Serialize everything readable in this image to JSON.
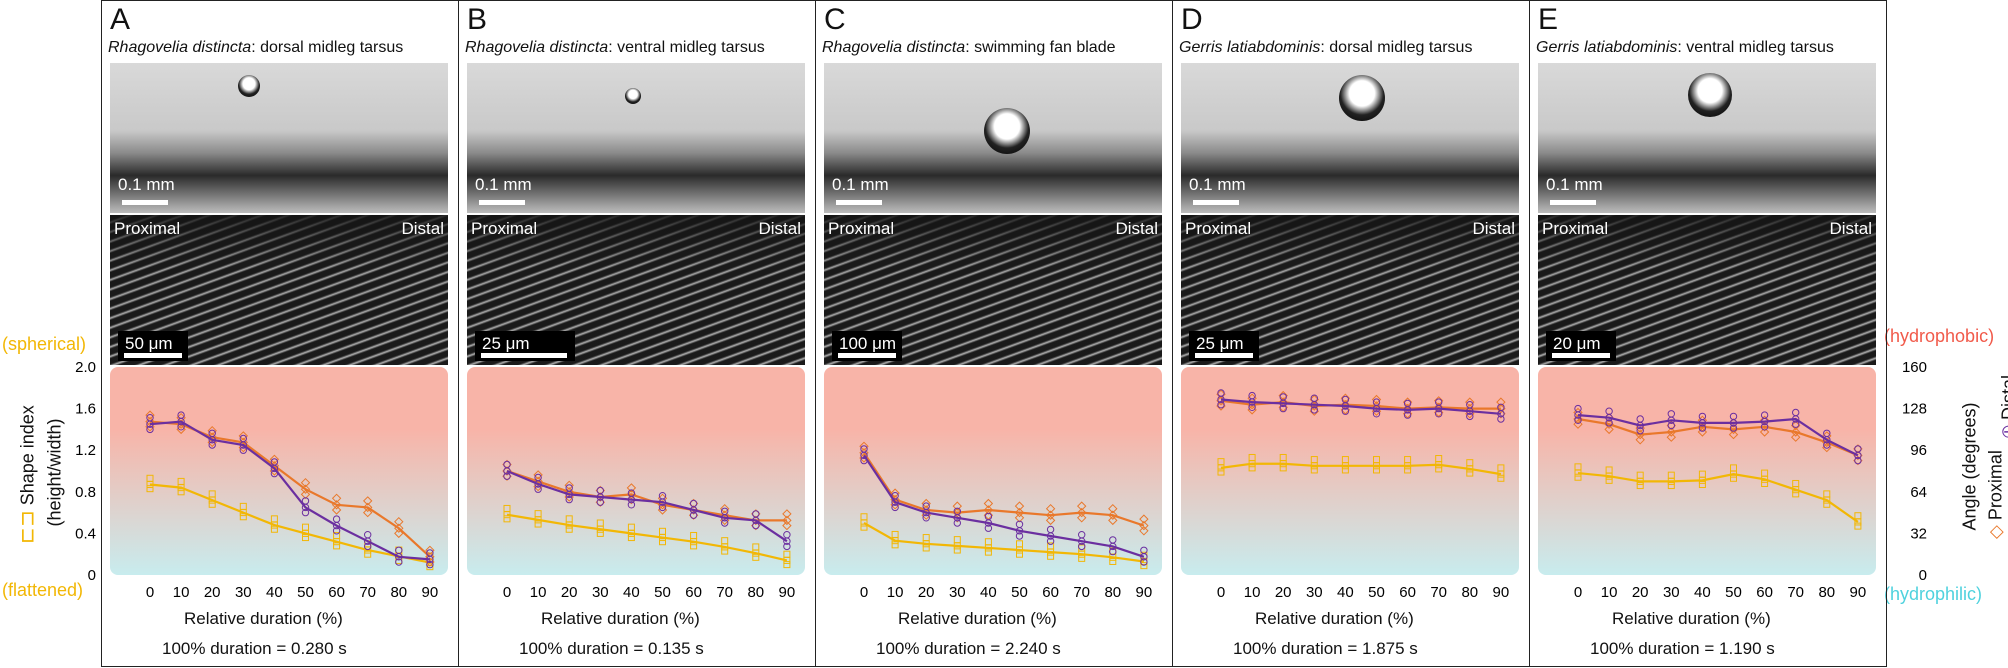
{
  "colors": {
    "shape_index": "#f2b705",
    "proximal": "#e9782b",
    "distal": "#6b2fa0",
    "hydrophobic_top": "#f8b4a8",
    "hydrophilic_bottom": "#c8ecee",
    "hydrophobic_text": "#f15a4a",
    "hydrophilic_text": "#4fd2de",
    "spherical_text": "#f2b705"
  },
  "left_axis": {
    "title": "Shape index",
    "subtitle": "(height/width)",
    "top_label": "(spherical)",
    "bottom_label": "(flattened)",
    "ticks": [
      "2.0",
      "1.6",
      "1.2",
      "0.8",
      "0.4",
      "0"
    ]
  },
  "right_axis": {
    "title": "Angle (degrees)",
    "top_label": "(hydrophobic)",
    "bottom_label": "(hydrophilic)",
    "ticks": [
      "160",
      "128",
      "96",
      "64",
      "32",
      "0"
    ],
    "legend_proximal": "Proximal",
    "legend_distal": "Distal"
  },
  "panels": [
    {
      "letter": "A",
      "species": "Rhagovelia distincta",
      "part": ": dorsal midleg tarsus",
      "photo_scale": "0.1 mm",
      "sem_scale": "50 μm",
      "sem_left": "Proximal",
      "sem_right": "Distal",
      "xlabel": "Relative duration (%)",
      "duration": "100% duration = 0.280 s"
    },
    {
      "letter": "B",
      "species": "Rhagovelia distincta",
      "part": ": ventral midleg tarsus",
      "photo_scale": "0.1 mm",
      "sem_scale": "25 μm",
      "sem_left": "Proximal",
      "sem_right": "Distal",
      "xlabel": "Relative duration (%)",
      "duration": "100% duration = 0.135 s"
    },
    {
      "letter": "C",
      "species": "Rhagovelia distincta",
      "part": ": swimming fan blade",
      "photo_scale": "0.1 mm",
      "sem_scale": "100 μm",
      "sem_left": "Proximal",
      "sem_right": "Distal",
      "xlabel": "Relative duration (%)",
      "duration": "100% duration = 2.240 s"
    },
    {
      "letter": "D",
      "species": "Gerris latiabdominis",
      "part": ": dorsal midleg tarsus",
      "photo_scale": "0.1 mm",
      "sem_scale": "25 μm",
      "sem_left": "Proximal",
      "sem_right": "Distal",
      "xlabel": "Relative duration (%)",
      "duration": "100% duration = 1.875 s"
    },
    {
      "letter": "E",
      "species": "Gerris latiabdominis",
      "part": ": ventral midleg tarsus",
      "photo_scale": "0.1 mm",
      "sem_scale": "20 μm",
      "sem_left": "Proximal",
      "sem_right": "Distal",
      "xlabel": "Relative duration (%)",
      "duration": "100% duration = 1.190 s"
    }
  ],
  "chart_data": [
    {
      "type": "line",
      "panel": "A",
      "x": [
        0,
        10,
        20,
        30,
        40,
        50,
        60,
        70,
        80,
        90
      ],
      "xlabel": "Relative duration (%)",
      "ylabel_left": "Shape index (height/width)",
      "ylim_left": [
        0,
        2.0
      ],
      "ylabel_right": "Angle (degrees)",
      "ylim_right": [
        0,
        160
      ],
      "series": [
        {
          "name": "Shape index",
          "axis": "left",
          "values": [
            0.87,
            0.84,
            0.72,
            0.6,
            0.48,
            0.4,
            0.32,
            0.24,
            0.18,
            0.12
          ]
        },
        {
          "name": "Proximal",
          "axis": "right",
          "values": [
            118,
            116,
            106,
            102,
            84,
            66,
            54,
            52,
            36,
            14
          ]
        },
        {
          "name": "Distal",
          "axis": "right",
          "values": [
            116,
            118,
            104,
            100,
            82,
            52,
            38,
            26,
            14,
            12
          ]
        }
      ]
    },
    {
      "type": "line",
      "panel": "B",
      "x": [
        0,
        10,
        20,
        30,
        40,
        50,
        60,
        70,
        80,
        90
      ],
      "xlabel": "Relative duration (%)",
      "ylim_left": [
        0,
        2.0
      ],
      "ylim_right": [
        0,
        160
      ],
      "series": [
        {
          "name": "Shape index",
          "axis": "left",
          "values": [
            0.58,
            0.53,
            0.48,
            0.44,
            0.4,
            0.36,
            0.32,
            0.27,
            0.21,
            0.14
          ]
        },
        {
          "name": "Proximal",
          "axis": "right",
          "values": [
            80,
            72,
            64,
            60,
            62,
            54,
            50,
            46,
            42,
            42
          ]
        },
        {
          "name": "Distal",
          "axis": "right",
          "values": [
            80,
            70,
            62,
            60,
            58,
            56,
            50,
            44,
            42,
            26
          ]
        }
      ]
    },
    {
      "type": "line",
      "panel": "C",
      "x": [
        0,
        10,
        20,
        30,
        40,
        50,
        60,
        70,
        80,
        90
      ],
      "xlabel": "Relative duration (%)",
      "ylim_left": [
        0,
        2.0
      ],
      "ylim_right": [
        0,
        160
      ],
      "series": [
        {
          "name": "Shape index",
          "axis": "left",
          "values": [
            0.5,
            0.33,
            0.3,
            0.28,
            0.26,
            0.24,
            0.22,
            0.2,
            0.17,
            0.13
          ]
        },
        {
          "name": "Proximal",
          "axis": "right",
          "values": [
            94,
            58,
            50,
            48,
            50,
            48,
            46,
            48,
            46,
            38
          ]
        },
        {
          "name": "Distal",
          "axis": "right",
          "values": [
            92,
            56,
            48,
            44,
            40,
            34,
            30,
            26,
            22,
            14
          ]
        }
      ]
    },
    {
      "type": "line",
      "panel": "D",
      "x": [
        0,
        10,
        20,
        30,
        40,
        50,
        60,
        70,
        80,
        90
      ],
      "xlabel": "Relative duration (%)",
      "ylim_left": [
        0,
        2.0
      ],
      "ylim_right": [
        0,
        160
      ],
      "series": [
        {
          "name": "Shape index",
          "axis": "left",
          "values": [
            1.03,
            1.07,
            1.07,
            1.05,
            1.05,
            1.05,
            1.05,
            1.06,
            1.02,
            0.97
          ]
        },
        {
          "name": "Proximal",
          "axis": "right",
          "values": [
            134,
            131,
            133,
            130,
            131,
            130,
            128,
            129,
            128,
            128
          ]
        },
        {
          "name": "Distal",
          "axis": "right",
          "values": [
            135,
            133,
            132,
            131,
            130,
            128,
            127,
            128,
            126,
            124
          ]
        }
      ]
    },
    {
      "type": "line",
      "panel": "E",
      "x": [
        0,
        10,
        20,
        30,
        40,
        50,
        60,
        70,
        80,
        90
      ],
      "xlabel": "Relative duration (%)",
      "ylim_left": [
        0,
        2.0
      ],
      "ylim_right": [
        0,
        160
      ],
      "series": [
        {
          "name": "Shape index",
          "axis": "left",
          "values": [
            0.98,
            0.95,
            0.9,
            0.9,
            0.91,
            0.97,
            0.92,
            0.82,
            0.72,
            0.51
          ]
        },
        {
          "name": "Proximal",
          "axis": "right",
          "values": [
            120,
            116,
            108,
            110,
            114,
            112,
            114,
            110,
            102,
            92
          ]
        },
        {
          "name": "Distal",
          "axis": "right",
          "values": [
            123,
            121,
            115,
            119,
            117,
            117,
            118,
            120,
            104,
            92
          ]
        }
      ]
    }
  ]
}
